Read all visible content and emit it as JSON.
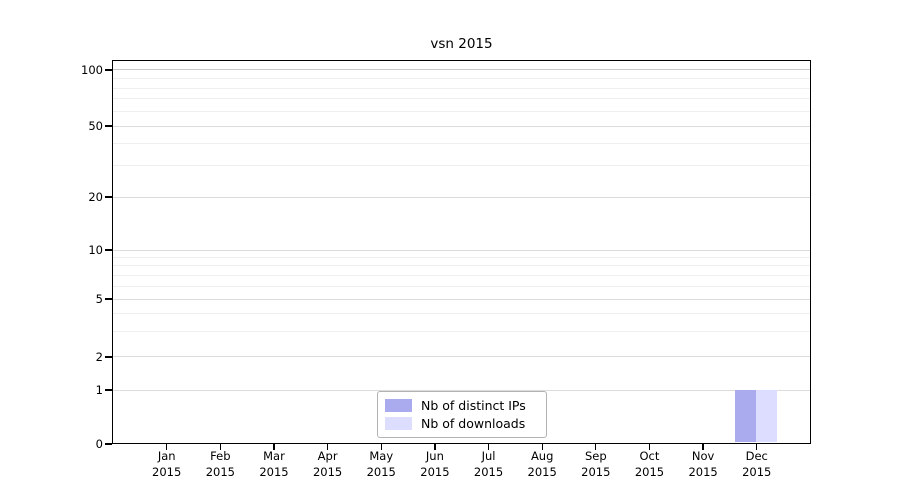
{
  "chart_data": {
    "type": "bar",
    "title": "vsn 2015",
    "categories": [
      "Jan",
      "Feb",
      "Mar",
      "Apr",
      "May",
      "Jun",
      "Jul",
      "Aug",
      "Sep",
      "Oct",
      "Nov",
      "Dec"
    ],
    "category_year": "2015",
    "series": [
      {
        "name": "Nb of distinct IPs",
        "color": "#aaaaee",
        "values": [
          0,
          0,
          0,
          0,
          0,
          0,
          0,
          0,
          0,
          0,
          0,
          1
        ]
      },
      {
        "name": "Nb of downloads",
        "color": "#ddddff",
        "values": [
          0,
          0,
          0,
          0,
          0,
          0,
          0,
          0,
          0,
          0,
          0,
          1
        ]
      }
    ],
    "yticks": [
      0,
      1,
      2,
      5,
      10,
      20,
      50,
      100
    ],
    "minor_gridlines": [
      3,
      4,
      6,
      7,
      8,
      9,
      30,
      40,
      60,
      70,
      80,
      90
    ],
    "ylim": [
      0,
      110
    ],
    "scale": "symlog",
    "grid": "horizontal",
    "legend_position": "bottom-center-inside",
    "xlabel": "",
    "ylabel": ""
  }
}
